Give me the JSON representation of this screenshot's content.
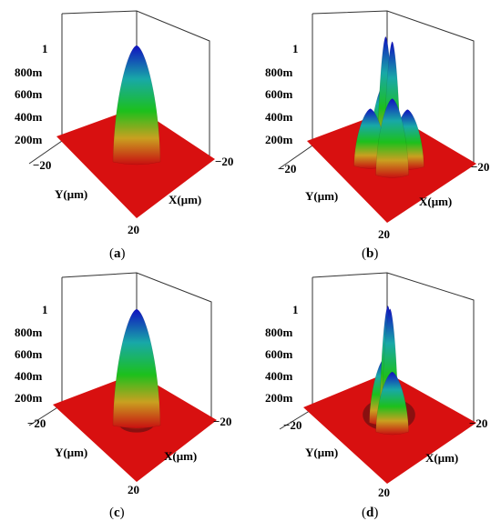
{
  "chart_data": [
    {
      "type": "surface3d",
      "panel": "a",
      "caption": "(a)",
      "caption_letter": "a",
      "xlabel": "X(μm)",
      "ylabel": "Y(μm)",
      "x_range": [
        -20,
        20
      ],
      "y_range": [
        -20,
        20
      ],
      "z_range": [
        0,
        1
      ],
      "z_ticks": [
        "200m",
        "400m",
        "600m",
        "800m",
        "1"
      ],
      "x_tick_label": "−20",
      "y_tick_labels": [
        "−20",
        "20"
      ],
      "peaks": [
        {
          "x": 0,
          "y": 0,
          "z": 1.0
        }
      ],
      "rings": []
    },
    {
      "type": "surface3d",
      "panel": "b",
      "caption": "(b)",
      "caption_letter": "b",
      "xlabel": "X(μm)",
      "ylabel": "Y(μm)",
      "x_range": [
        -20,
        20
      ],
      "y_range": [
        -20,
        20
      ],
      "z_range": [
        0,
        1
      ],
      "z_ticks": [
        "200m",
        "400m",
        "600m",
        "800m",
        "1"
      ],
      "x_tick_label": "−20",
      "y_tick_labels": [
        "−20",
        "20"
      ],
      "peaks": [
        {
          "x": -4,
          "y": -1,
          "z": 1.0
        },
        {
          "x": 4,
          "y": 1,
          "z": 1.0
        },
        {
          "x": -10,
          "y": -7,
          "z": 0.6
        },
        {
          "x": 10,
          "y": 7,
          "z": 0.6
        },
        {
          "x": -9,
          "y": 8,
          "z": 0.45
        },
        {
          "x": 9,
          "y": -8,
          "z": 0.45
        }
      ],
      "rings": []
    },
    {
      "type": "surface3d",
      "panel": "c",
      "caption": "(c)",
      "caption_letter": "c",
      "xlabel": "X(μm)",
      "ylabel": "Y(μm)",
      "x_range": [
        -20,
        20
      ],
      "y_range": [
        -20,
        20
      ],
      "z_range": [
        0,
        1
      ],
      "z_ticks": [
        "200m",
        "400m",
        "600m",
        "800m",
        "1"
      ],
      "x_tick_label": "−20",
      "y_tick_labels": [
        "−20",
        "20"
      ],
      "peaks": [
        {
          "x": 0,
          "y": 0,
          "z": 1.0
        }
      ],
      "rings": [
        {
          "radius": 5,
          "z": 0.2
        },
        {
          "radius": 11,
          "z": 0.1
        }
      ]
    },
    {
      "type": "surface3d",
      "panel": "d",
      "caption": "(d)",
      "caption_letter": "d",
      "xlabel": "X(μm)",
      "ylabel": "Y(μm)",
      "x_range": [
        -20,
        20
      ],
      "y_range": [
        -20,
        20
      ],
      "z_range": [
        0,
        1
      ],
      "z_ticks": [
        "200m",
        "400m",
        "600m",
        "800m",
        "1"
      ],
      "x_tick_label": "−20",
      "y_tick_labels": [
        "−20",
        "20"
      ],
      "peaks": [
        {
          "x": -2,
          "y": -1,
          "z": 1.0
        },
        {
          "x": 2,
          "y": 1,
          "z": 1.0
        },
        {
          "x": -6,
          "y": -3,
          "z": 0.55
        },
        {
          "x": 6,
          "y": 3,
          "z": 0.5
        }
      ],
      "rings": [
        {
          "radius": 12,
          "z": 0.35,
          "arc": true
        }
      ]
    }
  ]
}
